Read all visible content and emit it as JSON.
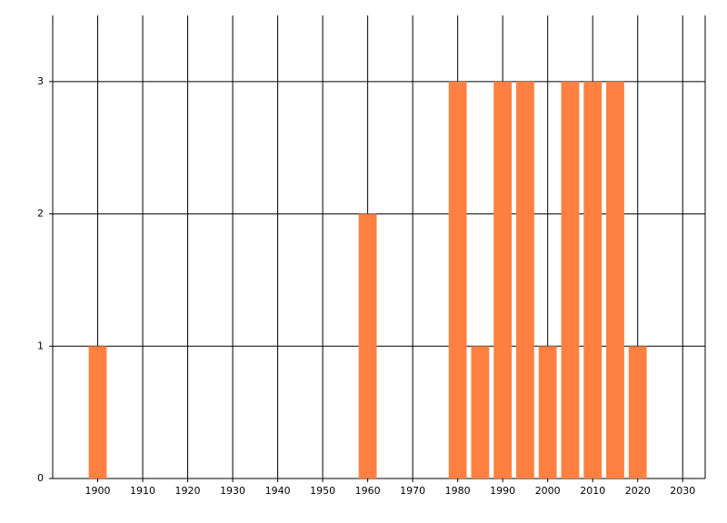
{
  "chart_data": {
    "type": "bar",
    "x": [
      1900,
      1960,
      1980,
      1985,
      1990,
      1995,
      2000,
      2005,
      2010,
      2015,
      2020
    ],
    "values": [
      1,
      2,
      3,
      1,
      3,
      3,
      1,
      3,
      3,
      3,
      1
    ],
    "color": "#ff8040",
    "xlim": [
      1890,
      2035
    ],
    "xticks": [
      1900,
      1910,
      1920,
      1930,
      1940,
      1950,
      1960,
      1970,
      1980,
      1990,
      2000,
      2010,
      2020,
      2030
    ],
    "ylim": [
      0,
      3.5
    ],
    "yticks": [
      0,
      1,
      2,
      3
    ],
    "grid": true
  }
}
